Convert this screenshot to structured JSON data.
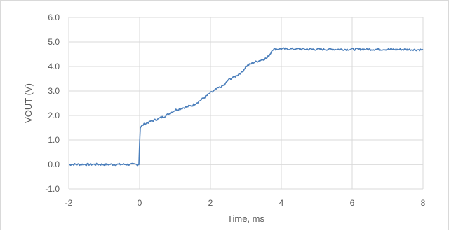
{
  "chart_data": {
    "type": "line",
    "title": "",
    "xlabel": "Time, ms",
    "ylabel": "VOUT (V)",
    "xlim": [
      -2,
      8
    ],
    "ylim": [
      -1.0,
      6.0
    ],
    "x_ticks": [
      -2,
      0,
      2,
      4,
      6,
      8
    ],
    "x_tick_labels": [
      "-2",
      "0",
      "2",
      "4",
      "6",
      "8"
    ],
    "y_ticks": [
      -1.0,
      0.0,
      1.0,
      2.0,
      3.0,
      4.0,
      5.0,
      6.0
    ],
    "y_tick_labels": [
      "-1.0",
      "0.0",
      "1.0",
      "2.0",
      "3.0",
      "4.0",
      "5.0",
      "6.0"
    ],
    "grid": {
      "horizontal": true,
      "vertical": true
    },
    "legend": "none",
    "colors": {
      "series": "#4a7ebb",
      "grid": "#d9d9d9",
      "text": "#595959"
    },
    "series": [
      {
        "x": [
          -2,
          -1.5,
          -1,
          -0.5,
          -0.02,
          0,
          0.02,
          0.1,
          0.25,
          0.5,
          0.75,
          1.0,
          1.2,
          1.5,
          1.7,
          2.0,
          2.2,
          2.4,
          2.5,
          2.7,
          2.9,
          3.0,
          3.2,
          3.4,
          3.6,
          3.7,
          3.75,
          4.0,
          5.0,
          6.0,
          7.0,
          8.0
        ],
        "y": [
          0.0,
          0.0,
          0.0,
          0.0,
          0.0,
          0.9,
          1.5,
          1.62,
          1.72,
          1.85,
          2.0,
          2.22,
          2.3,
          2.42,
          2.6,
          2.92,
          3.1,
          3.25,
          3.45,
          3.6,
          3.78,
          4.0,
          4.15,
          4.25,
          4.35,
          4.55,
          4.7,
          4.72,
          4.7,
          4.7,
          4.7,
          4.68
        ]
      }
    ]
  }
}
